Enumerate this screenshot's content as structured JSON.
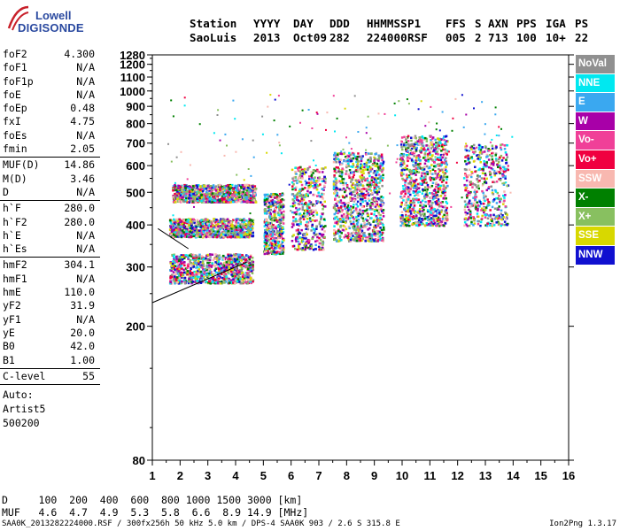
{
  "logo": {
    "line1": "Lowell",
    "line2": "DIGISONDE"
  },
  "header": {
    "row1": [
      "Station",
      "YYYY",
      "DAY",
      "DDD",
      "HHMMSS",
      "P1",
      "FFS",
      "S",
      "AXN",
      "PPS",
      "IGA",
      "PS"
    ],
    "row2": [
      "SaoLuis",
      "2013",
      "Oct09",
      "282",
      "224000",
      "RSF",
      "005",
      "2",
      "713",
      "100",
      "10+",
      "22"
    ]
  },
  "params": [
    {
      "name": "foF2",
      "value": "4.300"
    },
    {
      "name": "foF1",
      "value": "N/A"
    },
    {
      "name": "foF1p",
      "value": "N/A"
    },
    {
      "name": "foE",
      "value": "N/A"
    },
    {
      "name": "foEp",
      "value": "0.48"
    },
    {
      "name": "fxI",
      "value": "4.75"
    },
    {
      "name": "foEs",
      "value": "N/A"
    },
    {
      "name": "fmin",
      "value": "2.05"
    },
    {
      "sep": true
    },
    {
      "name": "MUF(D)",
      "value": "14.86"
    },
    {
      "name": "M(D)",
      "value": "3.46"
    },
    {
      "name": "D",
      "value": "N/A"
    },
    {
      "sep": true
    },
    {
      "name": "h`F",
      "value": "280.0"
    },
    {
      "name": "h`F2",
      "value": "280.0"
    },
    {
      "name": "h`E",
      "value": "N/A"
    },
    {
      "name": "h`Es",
      "value": "N/A"
    },
    {
      "sep": true
    },
    {
      "name": "hmF2",
      "value": "304.1"
    },
    {
      "name": "hmF1",
      "value": "N/A"
    },
    {
      "name": "hmE",
      "value": "110.0"
    },
    {
      "name": "yF2",
      "value": "31.9"
    },
    {
      "name": "yF1",
      "value": "N/A"
    },
    {
      "name": "yE",
      "value": "20.0"
    },
    {
      "name": "B0",
      "value": "42.0"
    },
    {
      "name": "B1",
      "value": "1.00"
    },
    {
      "sep": true
    },
    {
      "name": "C-level",
      "value": "55"
    },
    {
      "sep": true
    }
  ],
  "autoscaling": [
    "Auto:",
    "Artist5",
    "500200"
  ],
  "legend": [
    {
      "label": "NoVal",
      "color": "#909090"
    },
    {
      "label": "NNE",
      "color": "#00e8f0"
    },
    {
      "label": "E",
      "color": "#3aa8f0"
    },
    {
      "label": "W",
      "color": "#a800a8"
    },
    {
      "label": "Vo-",
      "color": "#f04098"
    },
    {
      "label": "Vo+",
      "color": "#f00040"
    },
    {
      "label": "SSW",
      "color": "#f8b8b0"
    },
    {
      "label": "X-",
      "color": "#008000"
    },
    {
      "label": "X+",
      "color": "#88c060"
    },
    {
      "label": "SSE",
      "color": "#d8d800"
    },
    {
      "label": "NNW",
      "color": "#1010d0"
    }
  ],
  "bottom": {
    "d_row": "D     100  200  400  600  800 1000 1500 3000 [km]",
    "muf_row": "MUF   4.6  4.7  4.9  5.3  5.8  6.6  8.9 14.9 [MHz]",
    "footer": "SAA0K_2013282224000.RSF / 300fx256h 50 kHz 5.0 km / DPS-4 SAA0K 903 / 2.6 S 315.8 E",
    "version": "Ion2Png 1.3.17"
  },
  "chart_data": {
    "type": "scatter",
    "xlabel": "",
    "ylabel": "",
    "xlim": [
      1,
      16
    ],
    "ylim": [
      80,
      1280
    ],
    "xticks": [
      1,
      2,
      3,
      4,
      5,
      6,
      7,
      8,
      9,
      10,
      11,
      12,
      13,
      14,
      15,
      16
    ],
    "yticks": [
      80,
      200,
      300,
      400,
      500,
      600,
      700,
      800,
      900,
      1000,
      1100,
      1200,
      1280
    ],
    "y_scale": "log",
    "clusters": [
      {
        "freq": [
          1.6,
          4.6
        ],
        "height": [
          270,
          330
        ],
        "density": "high"
      },
      {
        "freq": [
          1.6,
          4.6
        ],
        "height": [
          370,
          420
        ],
        "density": "high"
      },
      {
        "freq": [
          1.7,
          4.7
        ],
        "height": [
          470,
          530
        ],
        "density": "high"
      },
      {
        "freq": [
          5.0,
          5.7
        ],
        "height": [
          330,
          500
        ],
        "density": "medium"
      },
      {
        "freq": [
          6.0,
          7.2
        ],
        "height": [
          340,
          600
        ],
        "density": "medium"
      },
      {
        "freq": [
          7.5,
          9.3
        ],
        "height": [
          360,
          660
        ],
        "density": "high"
      },
      {
        "freq": [
          9.9,
          11.6
        ],
        "height": [
          400,
          740
        ],
        "density": "high"
      },
      {
        "freq": [
          12.2,
          13.8
        ],
        "height": [
          400,
          700
        ],
        "density": "medium"
      }
    ],
    "trace_lines": [
      {
        "x": [
          1.0,
          4.4
        ],
        "y": [
          235,
          310
        ]
      },
      {
        "x": [
          1.2,
          2.3
        ],
        "y": [
          390,
          340
        ]
      }
    ],
    "grid": false
  }
}
